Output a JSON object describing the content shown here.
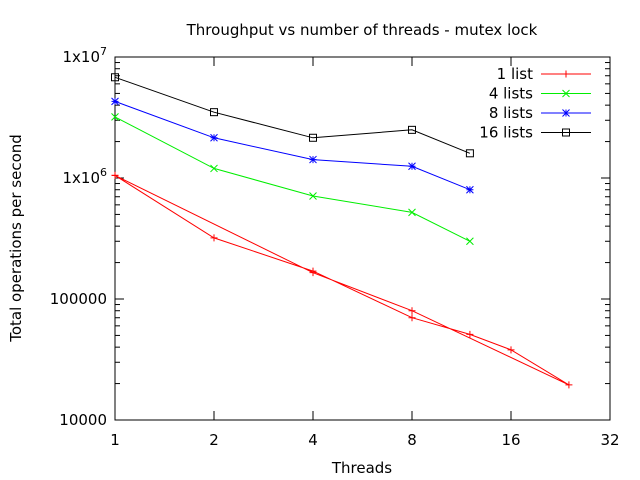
{
  "chart_data": {
    "type": "line",
    "title": "Throughput vs number of threads - mutex lock",
    "xlabel": "Threads",
    "ylabel": "Total operations per second",
    "xscale": "log2",
    "yscale": "log10",
    "xlim": [
      1,
      32
    ],
    "ylim": [
      10000,
      10000000
    ],
    "x_ticks": [
      {
        "value": 1,
        "label": "1"
      },
      {
        "value": 2,
        "label": "2"
      },
      {
        "value": 4,
        "label": "4"
      },
      {
        "value": 8,
        "label": "8"
      },
      {
        "value": 16,
        "label": "16"
      },
      {
        "value": 32,
        "label": "32"
      }
    ],
    "y_ticks": [
      {
        "value": 10000,
        "label": "10000"
      },
      {
        "value": 100000,
        "label": "100000"
      },
      {
        "value": 1000000,
        "label": "1x10",
        "sup": "6"
      },
      {
        "value": 10000000,
        "label": "1x10",
        "sup": "7"
      }
    ],
    "grid": false,
    "legend_position": "top-right",
    "series": [
      {
        "name": "1 list",
        "color": "#ff0000",
        "marker": "plus",
        "points": [
          {
            "x": 1,
            "y": 1050000
          },
          {
            "x": 2,
            "y": 320000
          },
          {
            "x": 4,
            "y": 170000
          },
          {
            "x": 8,
            "y": 70000
          },
          {
            "x": 12,
            "y": 51000
          },
          {
            "x": 16,
            "y": 38000
          },
          {
            "x": 24,
            "y": 19500
          },
          {
            "x": 8,
            "y": 80000
          },
          {
            "x": 4,
            "y": 165000
          },
          {
            "x": 1,
            "y": 1050000
          }
        ]
      },
      {
        "name": "4 lists",
        "color": "#00ee00",
        "marker": "cross",
        "points": [
          {
            "x": 1,
            "y": 3200000
          },
          {
            "x": 2,
            "y": 1200000
          },
          {
            "x": 4,
            "y": 710000
          },
          {
            "x": 8,
            "y": 520000
          },
          {
            "x": 12,
            "y": 300000
          }
        ]
      },
      {
        "name": "8 lists",
        "color": "#0000ff",
        "marker": "star",
        "points": [
          {
            "x": 1,
            "y": 4300000
          },
          {
            "x": 2,
            "y": 2150000
          },
          {
            "x": 4,
            "y": 1420000
          },
          {
            "x": 8,
            "y": 1250000
          },
          {
            "x": 12,
            "y": 800000
          }
        ]
      },
      {
        "name": "16 lists",
        "color": "#000000",
        "marker": "square",
        "points": [
          {
            "x": 1,
            "y": 6800000
          },
          {
            "x": 2,
            "y": 3500000
          },
          {
            "x": 4,
            "y": 2150000
          },
          {
            "x": 8,
            "y": 2500000
          },
          {
            "x": 12,
            "y": 1600000
          }
        ]
      }
    ]
  }
}
